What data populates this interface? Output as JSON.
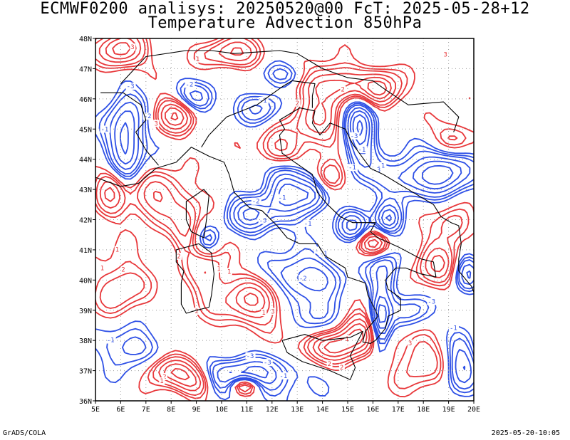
{
  "title": {
    "line1": "ECMWF0200 analisys: 20250520@00 FcT: 2025-05-28+12",
    "line2": "Temperature Advection 850hPa"
  },
  "map": {
    "lon_range": [
      5,
      20
    ],
    "lat_range": [
      36,
      48
    ],
    "lon_labels": [
      "5E",
      "6E",
      "7E",
      "8E",
      "9E",
      "10E",
      "11E",
      "12E",
      "13E",
      "14E",
      "15E",
      "16E",
      "17E",
      "18E",
      "19E",
      "20E"
    ],
    "lat_labels": [
      "36N",
      "37N",
      "38N",
      "39N",
      "40N",
      "41N",
      "42N",
      "43N",
      "44N",
      "45N",
      "46N",
      "47N",
      "48N"
    ],
    "grid": "dotted",
    "colors": {
      "positive": "#e8383b",
      "negative": "#2e50e6",
      "coast": "#000000",
      "grid": "#9a9a9a"
    },
    "contour_labels": [
      "0",
      "1",
      "-1",
      "2",
      "-2",
      "3",
      "-3",
      "-5"
    ]
  },
  "footer": {
    "left": "GrADS/COLA",
    "right": "2025-05-20-10:05"
  }
}
